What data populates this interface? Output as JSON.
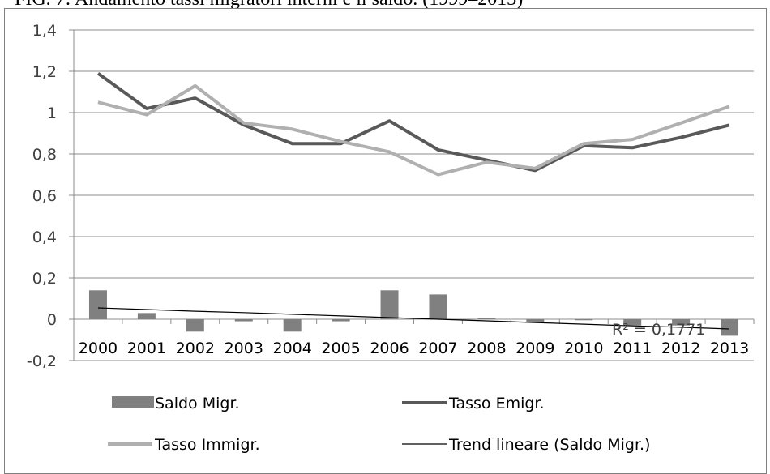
{
  "header_fragment": "FIG. 7: Andamento tassi migratori interni e il saldo. (1999–2013)",
  "chart_data": {
    "type": "bar",
    "categories": [
      "2000",
      "2001",
      "2002",
      "2003",
      "2004",
      "2005",
      "2006",
      "2007",
      "2008",
      "2009",
      "2010",
      "2011",
      "2012",
      "2013"
    ],
    "ylim": [
      -0.2,
      1.4
    ],
    "yticks": [
      "1,4",
      "1,2",
      "1",
      "0,8",
      "0,6",
      "0,4",
      "0,2",
      "0",
      "-0,2"
    ],
    "ytick_values": [
      1.4,
      1.2,
      1.0,
      0.8,
      0.6,
      0.4,
      0.2,
      0,
      -0.2
    ],
    "grid": true,
    "legend_position": "bottom",
    "series": [
      {
        "name": "Saldo Migr.",
        "kind": "bar",
        "color": "#808080",
        "values": [
          0.14,
          0.03,
          -0.06,
          -0.01,
          -0.06,
          -0.01,
          0.14,
          0.12,
          0.005,
          -0.015,
          -0.005,
          -0.03,
          -0.03,
          -0.08
        ]
      },
      {
        "name": "Tasso Emigr.",
        "kind": "line",
        "color": "#595959",
        "values": [
          1.19,
          1.02,
          1.07,
          0.94,
          0.85,
          0.85,
          0.96,
          0.82,
          0.77,
          0.72,
          0.84,
          0.83,
          0.88,
          0.94
        ]
      },
      {
        "name": "Tasso Immigr.",
        "kind": "line",
        "color": "#b0b0b0",
        "values": [
          1.05,
          0.99,
          1.13,
          0.95,
          0.92,
          0.86,
          0.81,
          0.7,
          0.76,
          0.73,
          0.85,
          0.87,
          0.95,
          1.03
        ]
      },
      {
        "name": "Trend lineare (Saldo Migr.)",
        "kind": "trend",
        "color": "#000000",
        "values": [
          0.055,
          0.047,
          0.039,
          0.032,
          0.024,
          0.016,
          0.008,
          0.0,
          -0.008,
          -0.016,
          -0.024,
          -0.032,
          -0.039,
          -0.047
        ]
      }
    ],
    "annotation": "R² = 0,1771"
  }
}
